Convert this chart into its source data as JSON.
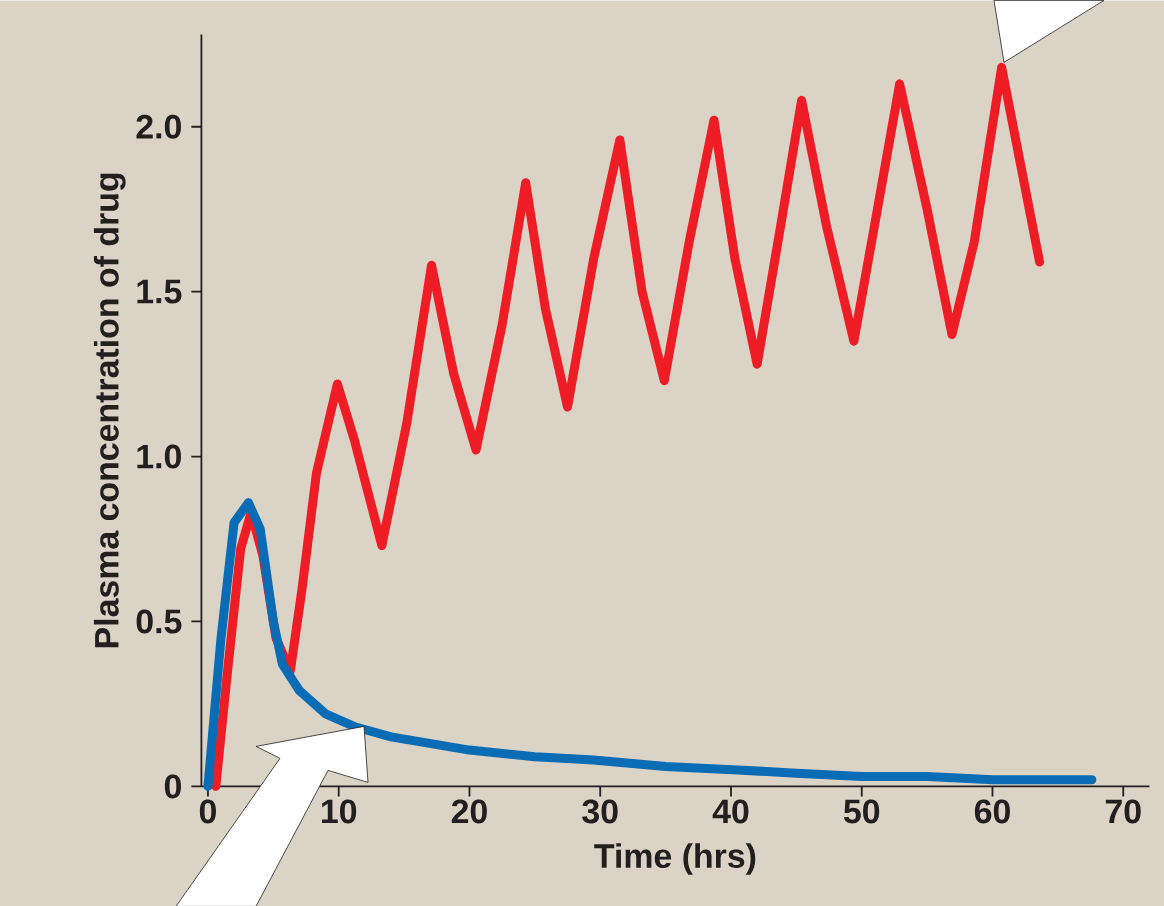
{
  "chart_data": {
    "type": "line",
    "xlabel": "Time (hrs)",
    "ylabel": "Plasma concentration of drug",
    "xlim": [
      -0.5,
      72
    ],
    "ylim": [
      0,
      2.28
    ],
    "xticks": [
      0,
      10,
      20,
      30,
      40,
      50,
      60,
      70
    ],
    "yticks": [
      0,
      0.5,
      {
        "value": 1,
        "label": "1.0"
      },
      1.5,
      {
        "value": 2,
        "label": "2.0"
      }
    ],
    "grid": false,
    "marker": "none",
    "line_style": "solid",
    "series": [
      {
        "color": "#ee1c25",
        "x": [
          0.6,
          1.5,
          2.5,
          3.3,
          4.2,
          5.2,
          6.3,
          7.2,
          8.3,
          9.9,
          11.2,
          13.3,
          15.2,
          17.1,
          18.8,
          20.5,
          22.5,
          24.3,
          25.8,
          27.5,
          29.5,
          31.5,
          33.2,
          34.9,
          36.8,
          38.7,
          40.3,
          42.0,
          43.8,
          45.4,
          47.3,
          49.4,
          51.2,
          52.9,
          55.0,
          56.9,
          58.6,
          60.7,
          63.6
        ],
        "values": [
          0,
          0.35,
          0.72,
          0.83,
          0.7,
          0.45,
          0.35,
          0.6,
          0.95,
          1.22,
          1.05,
          0.73,
          1.1,
          1.58,
          1.25,
          1.02,
          1.4,
          1.83,
          1.45,
          1.15,
          1.6,
          1.96,
          1.5,
          1.23,
          1.65,
          2.02,
          1.6,
          1.28,
          1.7,
          2.08,
          1.7,
          1.35,
          1.75,
          2.13,
          1.75,
          1.37,
          1.65,
          2.18,
          1.59
        ]
      },
      {
        "color": "#0a6cb5",
        "x": [
          0,
          1,
          2,
          3.1,
          4,
          5,
          5.7,
          7,
          9,
          11.3,
          14,
          17,
          20,
          25,
          29.5,
          35,
          40.5,
          45,
          50,
          55,
          60,
          67.6
        ],
        "values": [
          0,
          0.45,
          0.8,
          0.86,
          0.78,
          0.5,
          0.37,
          0.29,
          0.22,
          0.18,
          0.15,
          0.13,
          0.11,
          0.09,
          0.08,
          0.06,
          0.05,
          0.04,
          0.03,
          0.03,
          0.02,
          0.02
        ]
      }
    ]
  }
}
